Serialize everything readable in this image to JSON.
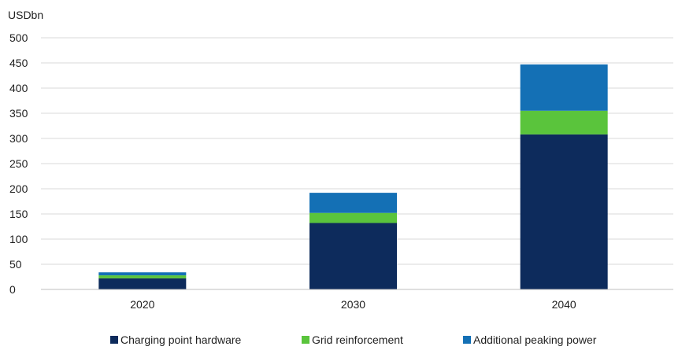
{
  "chart_data": {
    "type": "bar",
    "stacked": true,
    "ylabel": "USDbn",
    "ylim": [
      0,
      500
    ],
    "yticks": [
      0,
      50,
      100,
      150,
      200,
      250,
      300,
      350,
      400,
      450,
      500
    ],
    "ytick_labels": [
      "0",
      "50",
      "100",
      "150",
      "200",
      "250",
      "300",
      "350",
      "400",
      "450",
      "500"
    ],
    "grid": true,
    "legend_position": "bottom",
    "categories": [
      "2020",
      "2030",
      "2040"
    ],
    "series": [
      {
        "name": "Charging point hardware",
        "color": "#0d2b5c",
        "values": [
          22,
          132,
          308
        ]
      },
      {
        "name": "Grid reinforcement",
        "color": "#5ac43c",
        "values": [
          6,
          20,
          47
        ]
      },
      {
        "name": "Additional peaking power",
        "color": "#1470b5",
        "values": [
          6,
          40,
          92
        ]
      }
    ]
  }
}
